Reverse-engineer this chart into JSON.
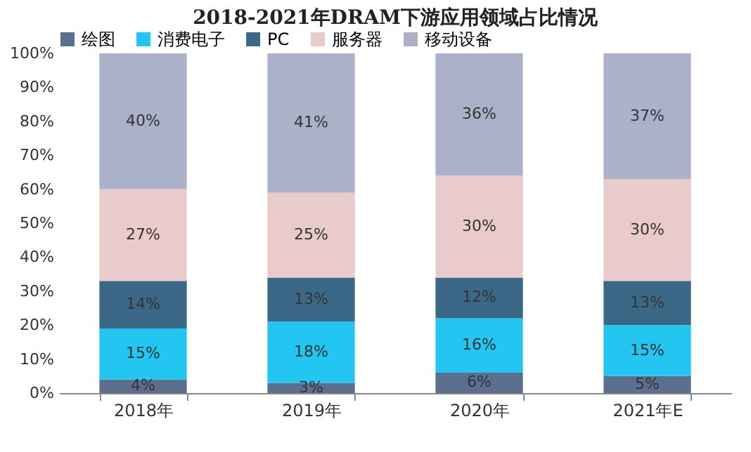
{
  "chart_data": {
    "type": "bar",
    "stacked": true,
    "title": "2018-2021年DRAM下游应用领域占比情况",
    "categories": [
      "2018年",
      "2019年",
      "2020年",
      "2021年E"
    ],
    "series": [
      {
        "name": "绘图",
        "color": "#5d6f8e",
        "values": [
          4,
          3,
          6,
          5
        ],
        "value_labels": [
          "4%",
          "3%",
          "6%",
          "5%"
        ]
      },
      {
        "name": "消费电子",
        "color": "#22c6f0",
        "values": [
          15,
          18,
          16,
          15
        ],
        "value_labels": [
          "15%",
          "18%",
          "16%",
          "15%"
        ]
      },
      {
        "name": "PC",
        "color": "#3c6887",
        "values": [
          14,
          13,
          12,
          13
        ],
        "value_labels": [
          "14%",
          "13%",
          "12%",
          "13%"
        ]
      },
      {
        "name": "服务器",
        "color": "#e9cbcb",
        "values": [
          27,
          25,
          30,
          30
        ],
        "value_labels": [
          "27%",
          "25%",
          "30%",
          "30%"
        ]
      },
      {
        "name": "移动设备",
        "color": "#aab1c8",
        "values": [
          40,
          41,
          36,
          37
        ],
        "value_labels": [
          "40%",
          "41%",
          "36%",
          "37%"
        ]
      }
    ],
    "ylim": [
      0,
      100
    ],
    "yticks": [
      {
        "value": 0,
        "label": "0%"
      },
      {
        "value": 10,
        "label": "10%"
      },
      {
        "value": 20,
        "label": "20%"
      },
      {
        "value": 30,
        "label": "30%"
      },
      {
        "value": 40,
        "label": "40%"
      },
      {
        "value": 50,
        "label": "50%"
      },
      {
        "value": 60,
        "label": "60%"
      },
      {
        "value": 70,
        "label": "70%"
      },
      {
        "value": 80,
        "label": "80%"
      },
      {
        "value": 90,
        "label": "90%"
      },
      {
        "value": 100,
        "label": "100%"
      }
    ],
    "legend": "top",
    "grid": false
  }
}
